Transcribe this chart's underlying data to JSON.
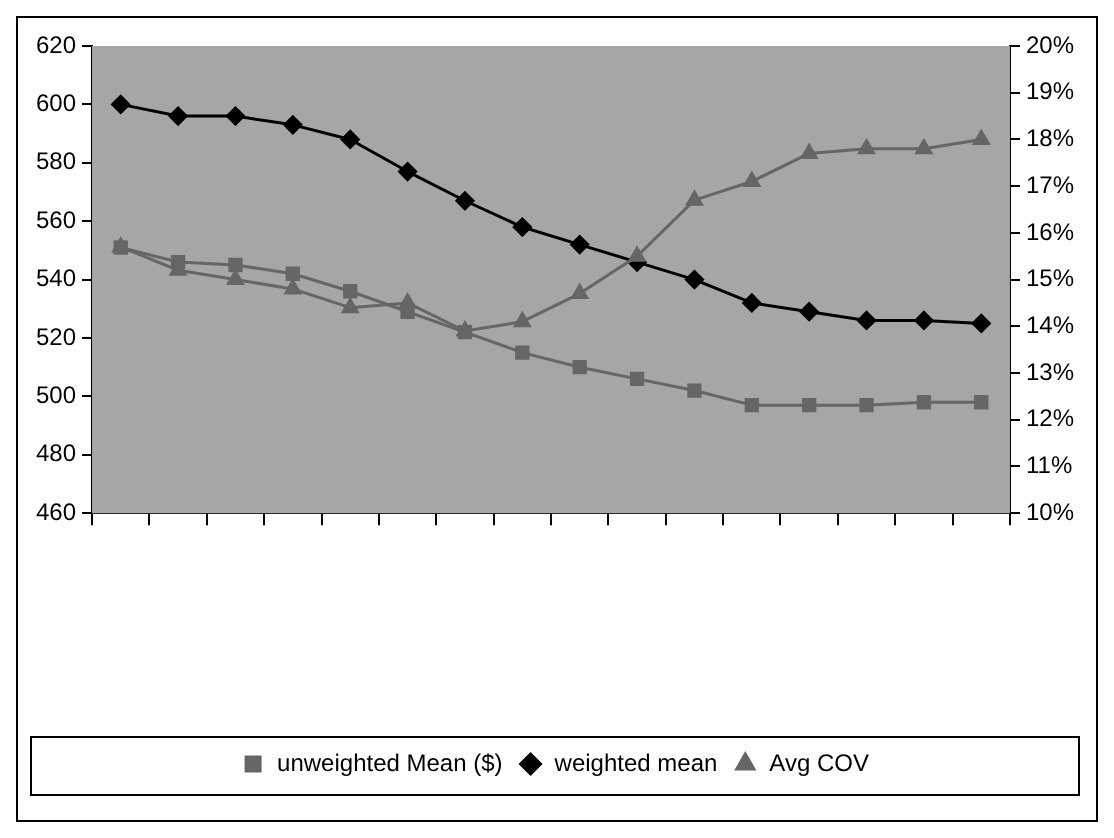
{
  "chart_data": {
    "type": "line",
    "categories": [
      null,
      null,
      null,
      null,
      null,
      null,
      null,
      null,
      null,
      null,
      null,
      null,
      null,
      null,
      null,
      null
    ],
    "series": [
      {
        "name": "unweighted Mean ($)",
        "color": "#666666",
        "marker": "square",
        "values": [
          551,
          546,
          545,
          542,
          536,
          529,
          522,
          515,
          510,
          506,
          502,
          497,
          497,
          497,
          498,
          498
        ]
      },
      {
        "name": "weighted mean",
        "color": "#000000",
        "marker": "diamond",
        "values": [
          600,
          596,
          596,
          593,
          588,
          577,
          567,
          558,
          552,
          546,
          540,
          532,
          529,
          526,
          526,
          525
        ]
      },
      {
        "name": "Avg COV",
        "color": "#666666",
        "marker": "triangle",
        "axis": "y2",
        "values": [
          15.7,
          15.2,
          15.0,
          14.8,
          14.4,
          14.5,
          13.9,
          14.1,
          14.7,
          15.5,
          16.7,
          17.1,
          17.7,
          17.8,
          17.8,
          18.0
        ]
      }
    ],
    "ylim": [
      460,
      620
    ],
    "yticks": [
      460,
      480,
      500,
      520,
      540,
      560,
      580,
      600,
      620
    ],
    "y2lim": [
      10,
      20
    ],
    "y2ticks": [
      {
        "value": 10,
        "label": "10%"
      },
      {
        "value": 11,
        "label": "11%"
      },
      {
        "value": 12,
        "label": "12%"
      },
      {
        "value": 13,
        "label": "13%"
      },
      {
        "value": 14,
        "label": "14%"
      },
      {
        "value": 15,
        "label": "15%"
      },
      {
        "value": 16,
        "label": "16%"
      },
      {
        "value": 17,
        "label": "17%"
      },
      {
        "value": 18,
        "label": "18%"
      },
      {
        "value": 19,
        "label": "19%"
      },
      {
        "value": 20,
        "label": "20%"
      }
    ],
    "grid": false,
    "legend": "bottom",
    "line_style": "solid"
  }
}
